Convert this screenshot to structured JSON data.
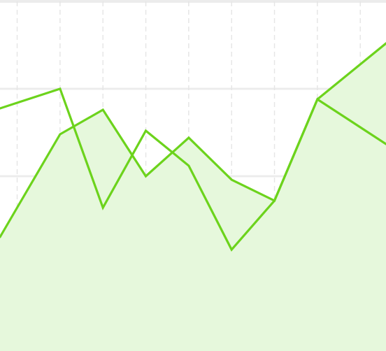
{
  "chart_data": {
    "type": "area",
    "x": [
      0,
      1,
      2,
      3,
      4,
      5,
      6,
      7,
      8
    ],
    "xlim": [
      -0.4,
      8.6
    ],
    "ylim": [
      0,
      100
    ],
    "grid": {
      "horizontal": true,
      "vertical_dashed": true
    },
    "series": [
      {
        "values": [
          41,
          62,
          69,
          50,
          61,
          49,
          43,
          72,
          82
        ],
        "style": "area"
      },
      {
        "values": [
          71,
          75,
          41,
          63,
          53,
          29,
          43,
          72,
          64
        ],
        "style": "line"
      }
    ],
    "colors": {
      "line": "#6cd31c",
      "area": "#e6f8dc",
      "grid": "#ececec",
      "vgrid": "#e6e6e6"
    }
  }
}
